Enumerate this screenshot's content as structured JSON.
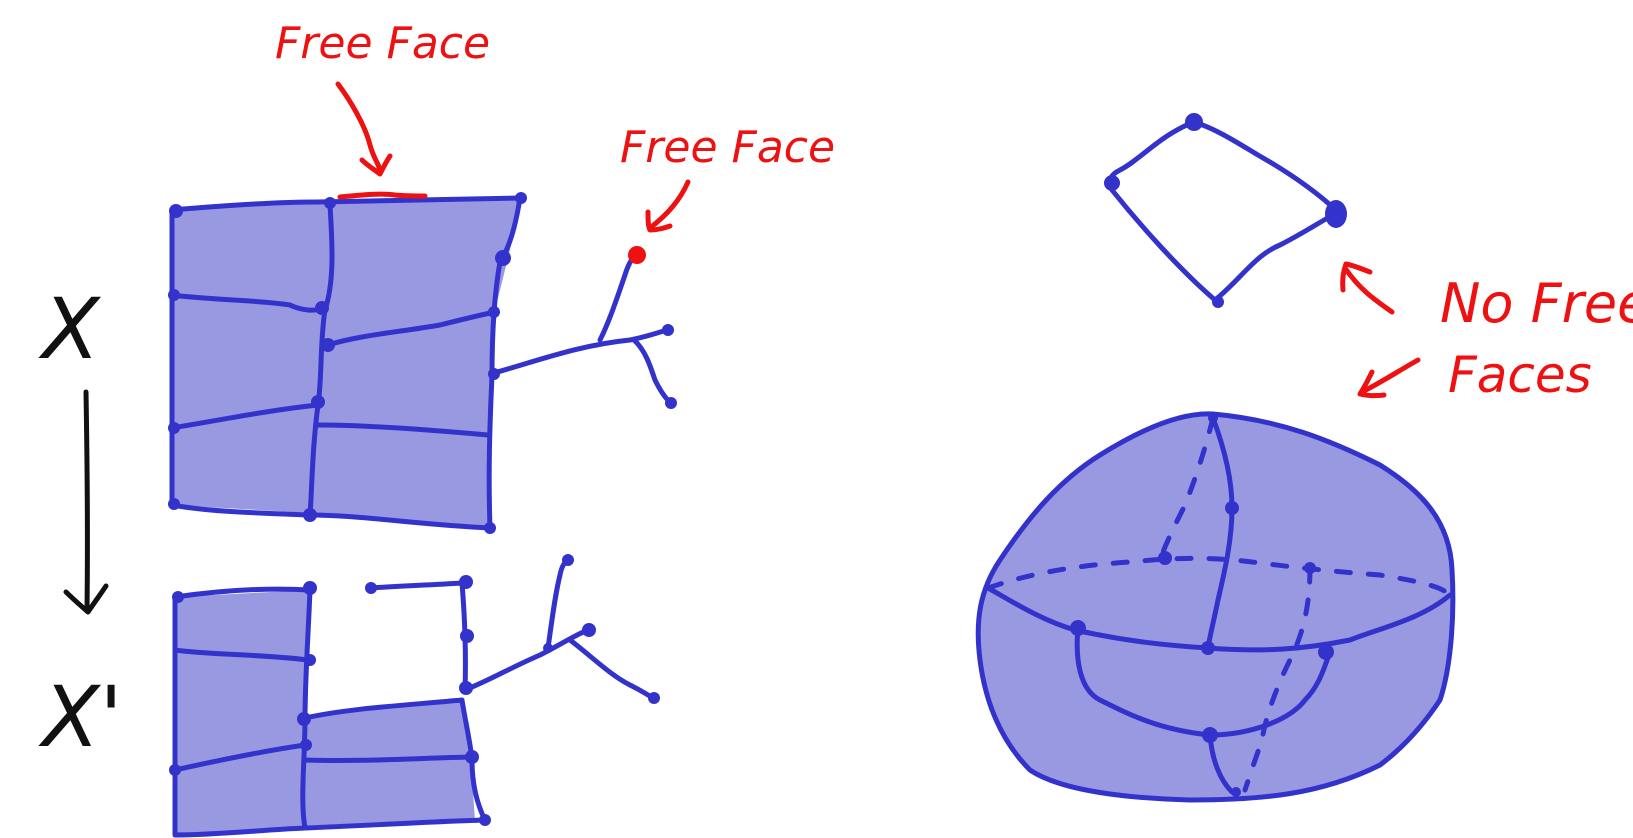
{
  "labels": {
    "free_face_top": "Free Face",
    "free_face_right": "Free Face",
    "no_free_faces_line1": "No Free",
    "no_free_faces_line2": "Faces",
    "space_x": "X",
    "space_x_prime": "X'"
  },
  "colors": {
    "cell_fill": "#9999e2",
    "edge": "#3333cc",
    "annotation": "#ee1111",
    "ink": "#111111"
  }
}
